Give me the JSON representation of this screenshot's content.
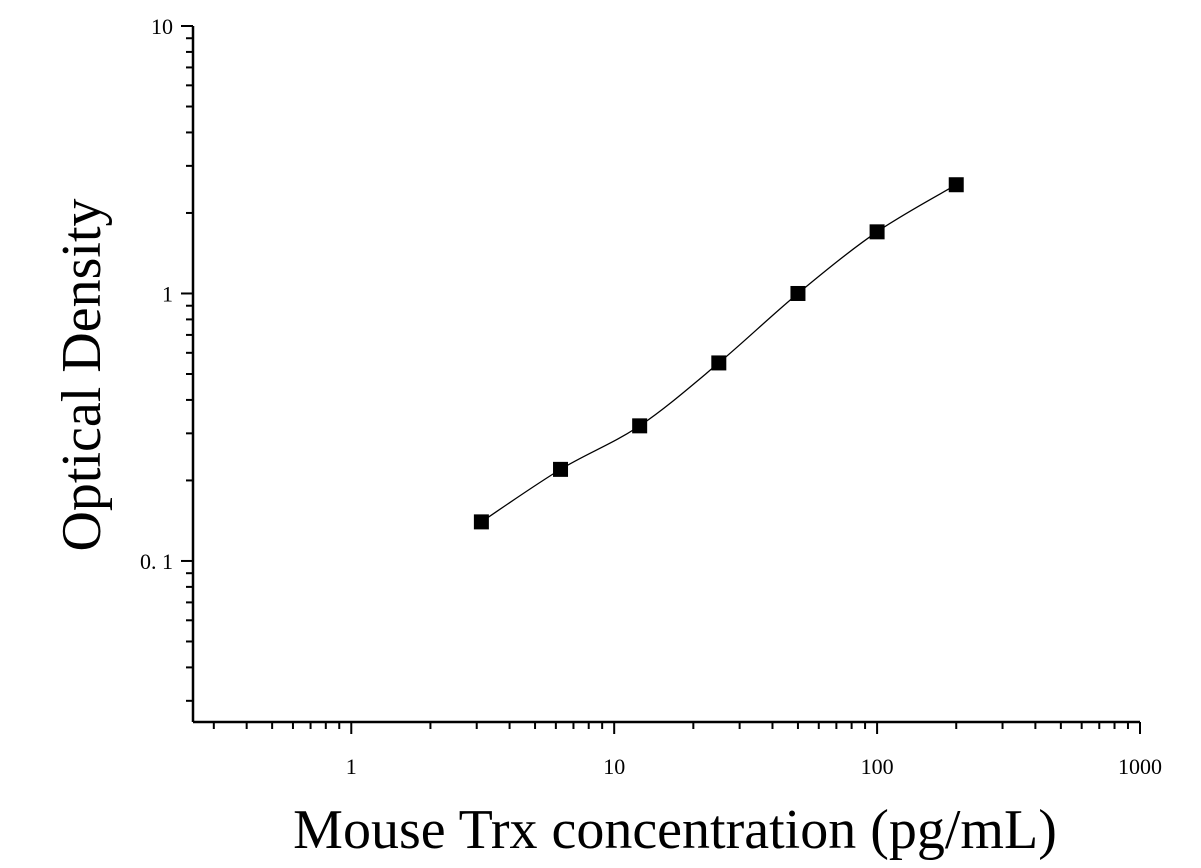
{
  "chart_data": {
    "type": "scatter",
    "title": "",
    "xlabel": "Mouse Trx concentration (pg/mL)",
    "ylabel": "Optical Density",
    "xscale": "log",
    "yscale": "log",
    "xlim": [
      0.25,
      1000
    ],
    "ylim": [
      0.025,
      10
    ],
    "grid": false,
    "legend": "none",
    "marker": "square",
    "marker_color": "#000000",
    "line_color": "#000000",
    "x_ticks": [
      {
        "value": 1,
        "label": "1"
      },
      {
        "value": 10,
        "label": "10"
      },
      {
        "value": 100,
        "label": "100"
      },
      {
        "value": 1000,
        "label": "1000"
      }
    ],
    "y_ticks": [
      {
        "value": 0.1,
        "label": "0. 1"
      },
      {
        "value": 1,
        "label": "1"
      },
      {
        "value": 10,
        "label": "10"
      }
    ],
    "series": [
      {
        "x": [
          3.125,
          6.25,
          12.5,
          25,
          50,
          100,
          200
        ],
        "y": [
          0.14,
          0.22,
          0.32,
          0.55,
          1.0,
          1.7,
          2.55
        ]
      }
    ]
  }
}
